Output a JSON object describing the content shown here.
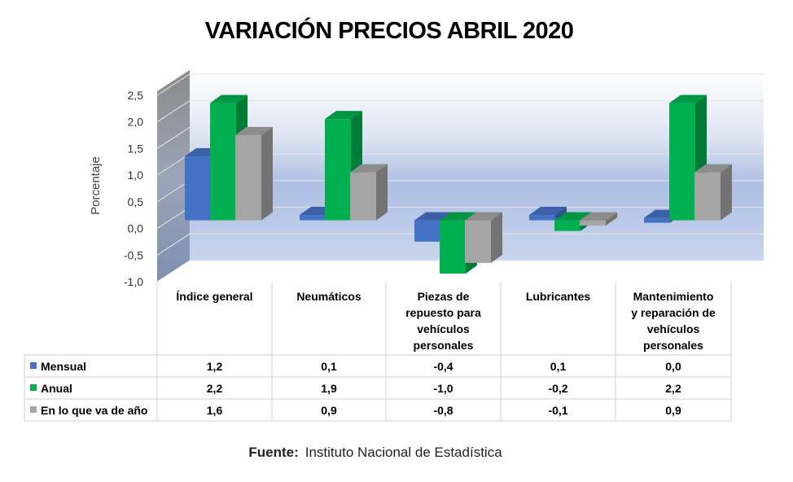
{
  "chart_data": {
    "type": "bar",
    "title": "VARIACIÓN PRECIOS ABRIL 2020",
    "ylabel": "Porcentaje",
    "ylim": [
      -1.0,
      2.5
    ],
    "yticks": [
      "2,5",
      "2,0",
      "1,5",
      "1,0",
      "0,5",
      "0,0",
      "-0,5",
      "-1,0"
    ],
    "categories": [
      [
        "Índice general"
      ],
      [
        "Neumáticos"
      ],
      [
        "Piezas de",
        "repuesto para",
        "vehículos",
        "personales"
      ],
      [
        "Lubricantes"
      ],
      [
        "Mantenimiento",
        "y reparación de",
        "vehículos",
        "personales"
      ]
    ],
    "series": [
      {
        "name": "Mensual",
        "color": "#4472C4",
        "values": [
          1.2,
          0.1,
          -0.4,
          0.1,
          0.0
        ],
        "labels": [
          "1,2",
          "0,1",
          "-0,4",
          "0,1",
          "0,0"
        ]
      },
      {
        "name": "Anual",
        "color": "#00B050",
        "values": [
          2.2,
          1.9,
          -1.0,
          -0.2,
          2.2
        ],
        "labels": [
          "2,2",
          "1,9",
          "-1,0",
          "-0,2",
          "2,2"
        ]
      },
      {
        "name": "En lo que va de año",
        "color": "#A5A5A5",
        "values": [
          1.6,
          0.9,
          -0.8,
          -0.1,
          0.9
        ],
        "labels": [
          "1,6",
          "0,9",
          "-0,8",
          "-0,1",
          "0,9"
        ]
      }
    ],
    "legend": "data-table",
    "grid": true
  },
  "source": {
    "label": "Fuente:",
    "text": "Instituto Nacional de Estadística"
  }
}
